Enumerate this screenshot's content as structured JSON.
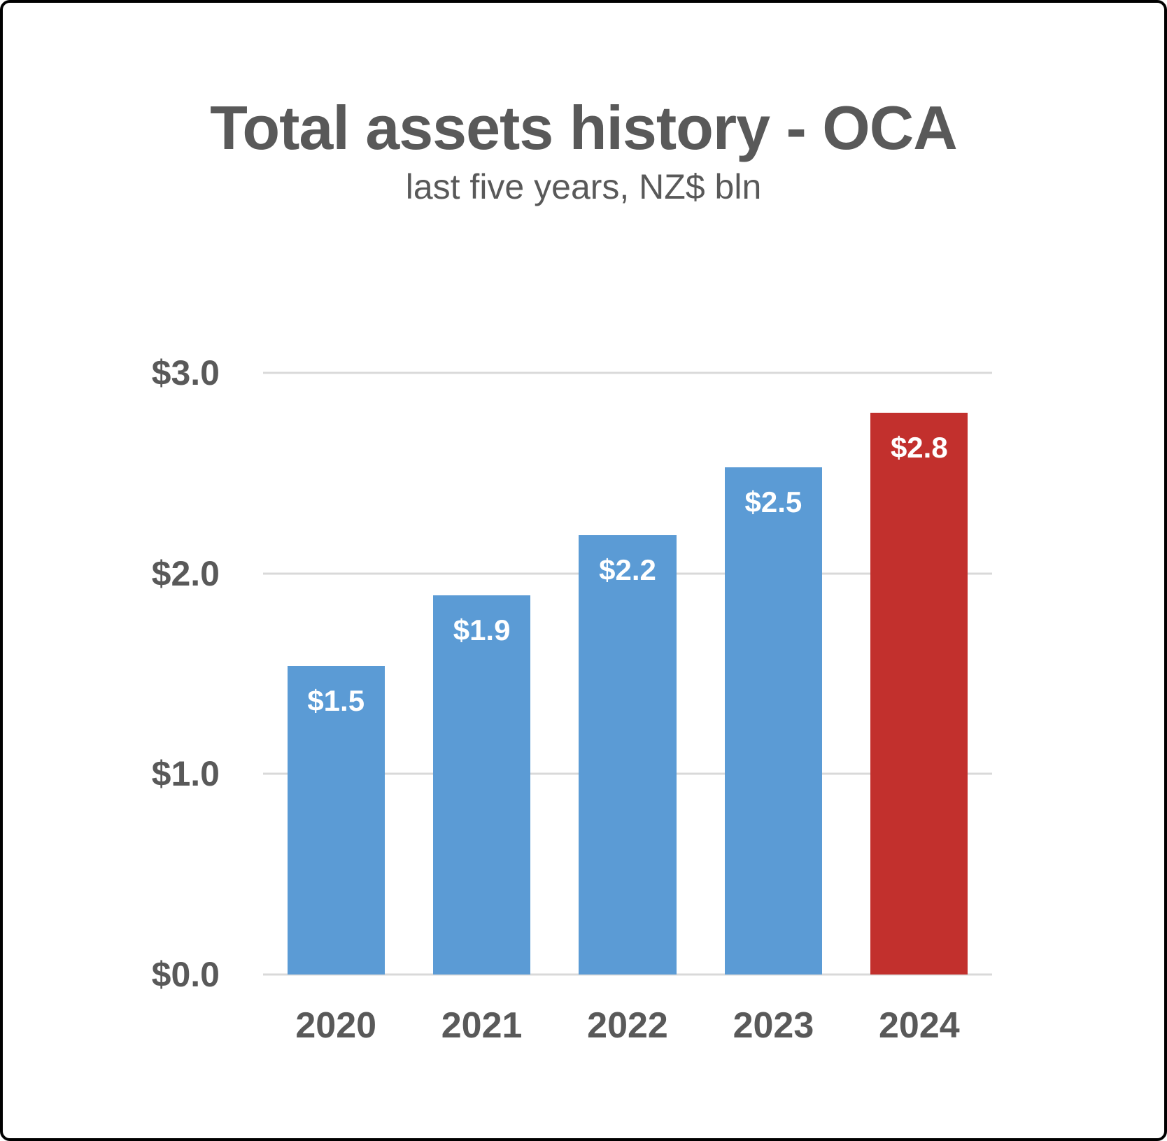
{
  "chart_data": {
    "type": "bar",
    "title": "Total assets history - OCA",
    "subtitle": "last five years, NZ$ bln",
    "categories": [
      "2020",
      "2021",
      "2022",
      "2023",
      "2024"
    ],
    "values": [
      1.5,
      1.9,
      2.2,
      2.5,
      2.8
    ],
    "values_precise": [
      1.54,
      1.89,
      2.19,
      2.53,
      2.8
    ],
    "bar_labels": [
      "$1.5",
      "$1.9",
      "$2.2",
      "$2.5",
      "$2.8"
    ],
    "bar_colors": [
      "#5B9BD5",
      "#5B9BD5",
      "#5B9BD5",
      "#5B9BD5",
      "#C2302D"
    ],
    "highlight_index": 4,
    "xlabel": "",
    "ylabel": "",
    "ylim": [
      0,
      3
    ],
    "y_ticks": [
      {
        "value": 0,
        "label": "$0.0"
      },
      {
        "value": 1,
        "label": "$1.0"
      },
      {
        "value": 2,
        "label": "$2.0"
      },
      {
        "value": 3,
        "label": "$3.0"
      }
    ],
    "grid": true,
    "legend_position": "none",
    "colors": {
      "bar_default": "#5B9BD5",
      "bar_highlight": "#C2302D",
      "text": "#595959",
      "gridline": "#D9D9D9",
      "data_label": "#FFFFFF",
      "card_border": "#000000",
      "background": "#FFFFFF"
    }
  }
}
